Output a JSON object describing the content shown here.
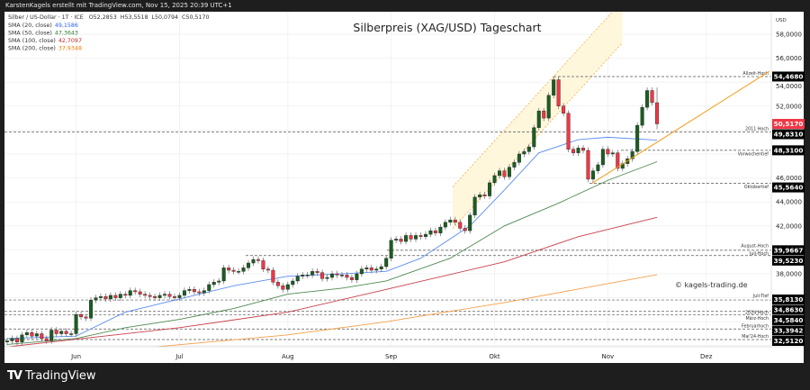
{
  "header": {
    "text": "KarstenKagels erstellt mit TradingView.com, Nov 15, 2025 20:39 UTC+1"
  },
  "legend": {
    "symbol": "Silber / US-Dollar · 1T · ICE",
    "open": "O52,2853",
    "high": "H53,5518",
    "low": "L50,0794",
    "close": "C50,5170",
    "sma": [
      {
        "label": "SMA (20, close)",
        "value": "49,1586",
        "color": "#2962ff"
      },
      {
        "label": "SMA (50, close)",
        "value": "47,3643",
        "color": "#2e7d32"
      },
      {
        "label": "SMA (100, close)",
        "value": "42,7097",
        "color": "#c62828"
      },
      {
        "label": "SMA (200, close)",
        "value": "37,9348",
        "color": "#f57c00"
      }
    ]
  },
  "footer": {
    "brand": "TradingView"
  },
  "chart_data": {
    "type": "candlestick",
    "title": "Silberpreis (XAG/USD) Tageschart",
    "watermark": "© kagels-trading.de",
    "currency": "USD",
    "ylim": [
      31.5,
      59
    ],
    "yticks": [
      "58,0000",
      "56,0000",
      "54,0000",
      "52,0000",
      "46,0000",
      "44,0000",
      "42,0000",
      "38,0000"
    ],
    "ytick_values": [
      58,
      56,
      54,
      52,
      46,
      44,
      42,
      38
    ],
    "xticks": [
      "Jun",
      "Jul",
      "Aug",
      "Sep",
      "Okt",
      "Nov",
      "Dez"
    ],
    "last_price": {
      "value": 50.517,
      "label": "50,5170",
      "color": "#f23645"
    },
    "last_candle": {
      "open": 52.2853,
      "high": 53.5518,
      "low": 50.0794,
      "close": 50.517
    },
    "closes": [
      32.4,
      32.6,
      32.3,
      32.9,
      33.1,
      32.8,
      33.0,
      32.6,
      32.4,
      33.3,
      33.0,
      33.2,
      33.0,
      33.0,
      34.6,
      34.4,
      34.3,
      35.8,
      36.0,
      36.1,
      35.9,
      36.2,
      36.0,
      36.3,
      36.2,
      36.6,
      36.5,
      36.3,
      36.2,
      36.1,
      36.0,
      36.2,
      36.3,
      36.1,
      36.0,
      36.2,
      36.6,
      36.7,
      36.5,
      36.4,
      36.6,
      37.1,
      37.3,
      37.4,
      38.5,
      38.3,
      38.2,
      38.2,
      38.5,
      38.9,
      39.2,
      39.1,
      38.4,
      38.3,
      37.3,
      37.0,
      36.7,
      37.1,
      37.4,
      37.8,
      37.9,
      37.9,
      38.2,
      38.1,
      37.6,
      37.7,
      38.0,
      37.9,
      37.9,
      37.7,
      37.5,
      38.0,
      38.4,
      38.5,
      38.3,
      38.4,
      38.6,
      39.3,
      40.8,
      40.9,
      40.7,
      41.2,
      40.9,
      41.2,
      41.1,
      41.3,
      41.6,
      41.4,
      41.9,
      42.3,
      42.5,
      42.3,
      41.8,
      41.6,
      42.9,
      44.4,
      44.6,
      44.5,
      45.6,
      46.2,
      46.6,
      46.1,
      46.9,
      47.3,
      48.0,
      48.2,
      48.6,
      50.2,
      51.6,
      51.0,
      52.9,
      54.2,
      52.0,
      51.4,
      48.4,
      48.1,
      48.5,
      48.3,
      45.9,
      46.6,
      47.1,
      48.4,
      48.0,
      48.1,
      46.8,
      47.2,
      47.6,
      48.2,
      50.4,
      51.9,
      53.3,
      52.29,
      50.517
    ],
    "sma_series": [
      {
        "name": "SMA (20, close)",
        "color": "#5b8def",
        "points": [
          [
            0,
            32.6
          ],
          [
            14,
            32.8
          ],
          [
            24,
            34.8
          ],
          [
            35,
            35.9
          ],
          [
            46,
            37.0
          ],
          [
            57,
            37.8
          ],
          [
            68,
            38.0
          ],
          [
            77,
            38.2
          ],
          [
            84,
            39.3
          ],
          [
            94,
            42.0
          ],
          [
            101,
            45.0
          ],
          [
            108,
            48.1
          ],
          [
            116,
            49.2
          ],
          [
            122,
            49.4
          ],
          [
            132,
            49.16
          ]
        ]
      },
      {
        "name": "SMA (50, close)",
        "color": "#4f8a52",
        "points": [
          [
            0,
            32.1
          ],
          [
            14,
            32.6
          ],
          [
            24,
            33.5
          ],
          [
            35,
            34.2
          ],
          [
            46,
            35.1
          ],
          [
            57,
            36.3
          ],
          [
            68,
            36.8
          ],
          [
            77,
            37.4
          ],
          [
            90,
            39.3
          ],
          [
            101,
            42.0
          ],
          [
            112,
            43.9
          ],
          [
            122,
            45.8
          ],
          [
            132,
            47.36
          ]
        ]
      },
      {
        "name": "SMA (100, close)",
        "color": "#c8404a",
        "points": [
          [
            0,
            31.9
          ],
          [
            35,
            33.5
          ],
          [
            57,
            34.8
          ],
          [
            77,
            36.7
          ],
          [
            101,
            39.0
          ],
          [
            116,
            41.1
          ],
          [
            132,
            42.71
          ]
        ]
      },
      {
        "name": "SMA (200, close)",
        "color": "#f5a04a",
        "points": [
          [
            22,
            31.6
          ],
          [
            57,
            32.9
          ],
          [
            77,
            34.0
          ],
          [
            101,
            35.6
          ],
          [
            132,
            37.93
          ]
        ]
      }
    ],
    "levels": [
      {
        "price": 54.468,
        "label": "Allzeit-Hoch",
        "tag": "54,4680"
      },
      {
        "price": 49.831,
        "label": "2011 Hoch",
        "tag": "49,8310"
      },
      {
        "price": 48.31,
        "label": "Vorwochentief",
        "tag": "48,3100"
      },
      {
        "price": 45.564,
        "label": "Oktobertief",
        "tag": "45,5640"
      },
      {
        "price": 39.9667,
        "label": "August-Hoch",
        "tag": "39,9667"
      },
      {
        "price": 39.523,
        "label": "Juli-Hoch",
        "tag": "39,5230"
      },
      {
        "price": 35.813,
        "label": "Juli-Tief",
        "tag": "35,8130"
      },
      {
        "price": 34.863,
        "label": "2024 Hoch",
        "tag": "34,8630"
      },
      {
        "price": 34.584,
        "label": "März-Hoch",
        "tag": "34,5840"
      },
      {
        "price": 33.3942,
        "label": "Februarhoch",
        "tag": "33,3942"
      },
      {
        "price": 32.512,
        "label": "Mai'24-Hoch",
        "tag": "32,5120"
      }
    ],
    "trend_channel": {
      "start_index": 90.5,
      "lower_start": 41.76,
      "upper_start": 45.26,
      "end_index": 125,
      "lower_end": 57.3,
      "upper_end": 60.8,
      "color": "#f5b041"
    },
    "support_line": {
      "from": [
        118.8,
        45.56
      ],
      "to": [
        154.8,
        54.9
      ],
      "color": "#f59d1b"
    }
  }
}
